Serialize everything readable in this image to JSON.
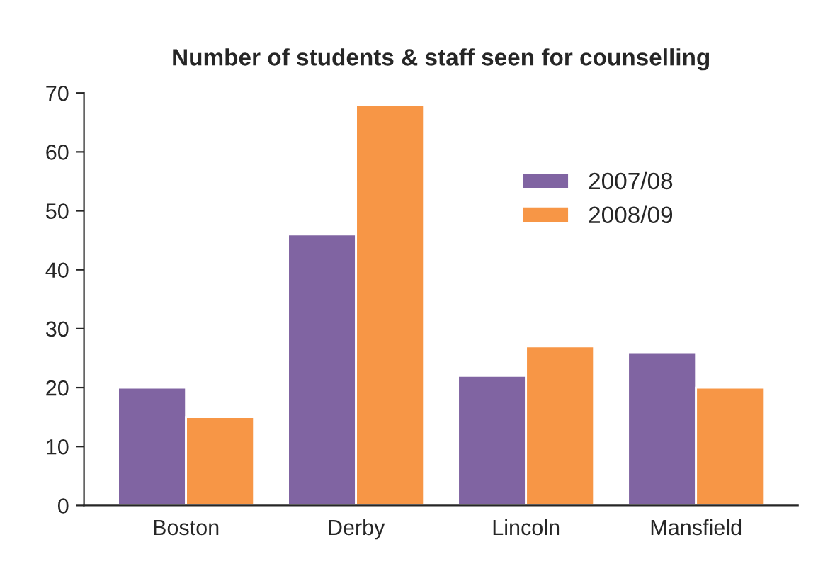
{
  "chart_data": {
    "type": "bar",
    "title": "Number of students & staff seen for counselling",
    "categories": [
      "Boston",
      "Derby",
      "Lincoln",
      "Mansfield"
    ],
    "series": [
      {
        "name": "2007/08",
        "color": "#8064a2",
        "values": [
          20,
          46,
          22,
          26
        ]
      },
      {
        "name": "2008/09",
        "color": "#f79646",
        "values": [
          15,
          68,
          27,
          20
        ]
      }
    ],
    "ylim": [
      0,
      70
    ],
    "yticks": [
      0,
      10,
      20,
      30,
      40,
      50,
      60,
      70
    ],
    "grid": false,
    "legend": "top right"
  }
}
